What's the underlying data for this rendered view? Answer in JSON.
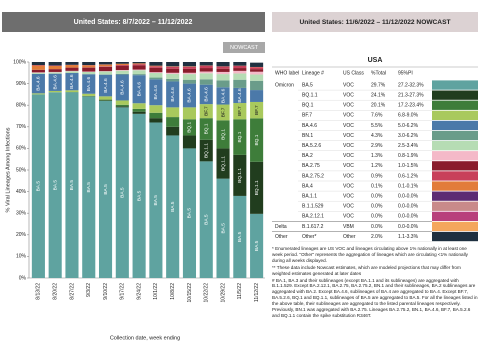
{
  "header_left": "United States: 8/7/2022 – 11/12/2022",
  "header_right": "United States: 11/6/2022 – 11/12/2022 NOWCAST",
  "nowcast_label": "NOWCAST",
  "chart_data": {
    "type": "stacked-bar",
    "y_label": "% Viral Lineages Among Infections",
    "x_label": "Collection date, week ending",
    "categories": [
      "8/13/22",
      "8/20/22",
      "8/27/22",
      "9/3/22",
      "9/10/22",
      "9/17/22",
      "9/24/22",
      "10/1/22",
      "10/8/22",
      "10/15/22",
      "10/22/22",
      "10/29/22",
      "11/5/22",
      "11/12/22"
    ],
    "ylim": [
      0,
      100
    ],
    "yticks": [
      {
        "value": 0,
        "label": "0%"
      },
      {
        "value": 10,
        "label": "10%"
      },
      {
        "value": 20,
        "label": "20%"
      },
      {
        "value": 30,
        "label": "30%"
      },
      {
        "value": 40,
        "label": "40%"
      },
      {
        "value": 50,
        "label": "50%"
      },
      {
        "value": 60,
        "label": "60%"
      },
      {
        "value": 70,
        "label": "70%"
      },
      {
        "value": 80,
        "label": "80%"
      },
      {
        "value": 90,
        "label": "90%"
      },
      {
        "value": 100,
        "label": "100%"
      }
    ],
    "grid": false,
    "series": [
      {
        "name": "BA.5",
        "color": "#5fa3a0",
        "values": [
          85,
          86,
          86,
          84,
          82,
          79,
          76,
          72,
          66,
          60,
          54,
          46,
          38,
          29.7
        ]
      },
      {
        "name": "BQ.1.1",
        "color": "#213d1e",
        "values": [
          0,
          0,
          0,
          0.1,
          0.2,
          0.5,
          1,
          2,
          4,
          6,
          10,
          14,
          19,
          24.1
        ]
      },
      {
        "name": "BQ.1",
        "color": "#3e7d3a",
        "values": [
          0,
          0,
          0.1,
          0.2,
          0.4,
          0.7,
          1.3,
          2.5,
          4.5,
          7.5,
          10,
          13,
          16.5,
          20.1
        ]
      },
      {
        "name": "BF.7",
        "color": "#a9c95d",
        "values": [
          0.5,
          0.6,
          0.8,
          1,
          1.5,
          2,
          2.6,
          3.5,
          4.5,
          5.5,
          6.5,
          7.3,
          7.5,
          7.6
        ]
      },
      {
        "name": "BA.4.6",
        "color": "#4b79a9",
        "values": [
          9,
          8,
          8,
          9,
          10,
          12,
          13,
          12,
          12,
          11,
          9,
          8,
          7,
          5.5
        ]
      },
      {
        "name": "BN.1",
        "color": "#6a9c8a",
        "values": [
          0,
          0,
          0,
          0.1,
          0.2,
          0.3,
          0.5,
          0.8,
          1.2,
          1.8,
          2.5,
          3.2,
          3.8,
          4.3
        ]
      },
      {
        "name": "BA.5.2.6",
        "color": "#b6dcb4",
        "values": [
          0.5,
          0.6,
          0.8,
          1,
          1.3,
          1.5,
          1.8,
          2.1,
          2.3,
          2.6,
          2.8,
          2.9,
          2.9,
          2.9
        ]
      },
      {
        "name": "BA.2",
        "color": "#f4b9c8",
        "values": [
          0.2,
          0.2,
          0.2,
          0.2,
          0.2,
          0.3,
          0.3,
          0.4,
          0.5,
          0.6,
          0.8,
          1,
          1.2,
          1.3
        ]
      },
      {
        "name": "BA.2.75",
        "color": "#8a1c2c",
        "values": [
          1.2,
          1.3,
          1.5,
          1.8,
          2,
          2,
          2,
          2,
          1.9,
          1.8,
          1.6,
          1.5,
          1.3,
          1.2
        ]
      },
      {
        "name": "BA.2.75.2",
        "color": "#c8405a",
        "values": [
          0,
          0,
          0,
          0.1,
          0.2,
          0.3,
          0.5,
          0.7,
          0.9,
          1,
          1.1,
          1,
          1,
          0.9
        ]
      },
      {
        "name": "BA.4",
        "color": "#e27c3a",
        "values": [
          2,
          1.5,
          1.2,
          1,
          0.8,
          0.6,
          0.4,
          0.3,
          0.2,
          0.2,
          0.1,
          0.1,
          0.1,
          0.1
        ]
      },
      {
        "name": "BA.1.1",
        "color": "#5c2b73",
        "values": [
          0,
          0,
          0,
          0,
          0,
          0,
          0,
          0,
          0,
          0,
          0,
          0,
          0,
          0
        ]
      },
      {
        "name": "B.1.1.529",
        "color": "#c98a8a",
        "values": [
          0,
          0,
          0,
          0,
          0,
          0,
          0,
          0,
          0,
          0,
          0,
          0,
          0,
          0
        ]
      },
      {
        "name": "BA.2.12.1",
        "color": "#b8407c",
        "values": [
          0.2,
          0.2,
          0.1,
          0.1,
          0.1,
          0,
          0,
          0,
          0,
          0,
          0,
          0,
          0,
          0
        ]
      },
      {
        "name": "B.1.617.2",
        "color": "#f4a65c",
        "values": [
          0,
          0,
          0,
          0,
          0,
          0,
          0,
          0,
          0,
          0,
          0,
          0,
          0,
          0
        ]
      },
      {
        "name": "Other*",
        "color": "#1f3040",
        "values": [
          1.4,
          1.6,
          1.3,
          1.4,
          1.1,
          0.8,
          0.6,
          1.7,
          2,
          2,
          1.6,
          2,
          1.7,
          2.0
        ]
      }
    ]
  },
  "table": {
    "title": "USA",
    "columns": [
      "WHO label",
      "Lineage #",
      "US Class",
      "%Total",
      "95%PI"
    ],
    "who": [
      "Omicron",
      null,
      null,
      null,
      null,
      null,
      null,
      null,
      null,
      null,
      null,
      null,
      null,
      null,
      "Delta",
      "Other"
    ],
    "class": [
      "VOC",
      "VOC",
      "VOC",
      "VOC",
      "VOC",
      "VOC",
      "VOC",
      "VOC",
      "VOC",
      "VOC",
      "VOC",
      "VOC",
      "VOC",
      "VOC",
      "VBM",
      "Other"
    ],
    "pct": [
      "29.7%",
      "24.1%",
      "20.1%",
      "7.6%",
      "5.5%",
      "4.3%",
      "2.9%",
      "1.3%",
      "1.2%",
      "0.9%",
      "0.1%",
      "0.0%",
      "0.0%",
      "0.0%",
      "0.0%",
      "2.0%"
    ],
    "pi": [
      "27.2-32.3%",
      "21.3-27.3%",
      "17.2-23.4%",
      "6.8-9.0%",
      "5.0-6.2%",
      "3.0-6.2%",
      "2.5-3.4%",
      "0.8-1.9%",
      "1.0-1.5%",
      "0.6-1.2%",
      "0.1-0.1%",
      "0.0-0.0%",
      "0.0-0.0%",
      "0.0-0.0%",
      "0.0-0.0%",
      "1.1-3.3%"
    ]
  },
  "footnotes": [
    "* Enumerated lineages are US VOC and lineages circulating above 1% nationally in at least one week period. \"Other\" represents the aggregation of lineages which are circulating <1% nationally during all weeks displayed.",
    "** These data include Nowcast estimates, which are modeled projections that may differ from weighted estimates generated at later dates",
    "# BA.1, BA.3 and their sublineages (except BA.1.1 and its sublineages) are aggregated with B.1.1.529. Except BA.2.12.1, BA.2.75, BA.2.75.2, BN.1 and their sublineages, BA.2 sublineages are aggregated with BA.2. Except BA.4.6, sublineages of BA.4 are aggregated to BA.4. Except BF.7, BA.5.2.6, BQ.1 and BQ.1.1, sublineages of BA.5 are aggregated to BA.5. For all the lineages listed in the above table, their sublineages are aggregated to the listed parental lineages respectively. Previously, BN.1 was aggregated with BA.2.75. Lineages BA.2.75.2, BN.1, BA.4.6, BF.7, BA.5.2.6 and BQ.1.1 contain the spike substitution R346T."
  ]
}
